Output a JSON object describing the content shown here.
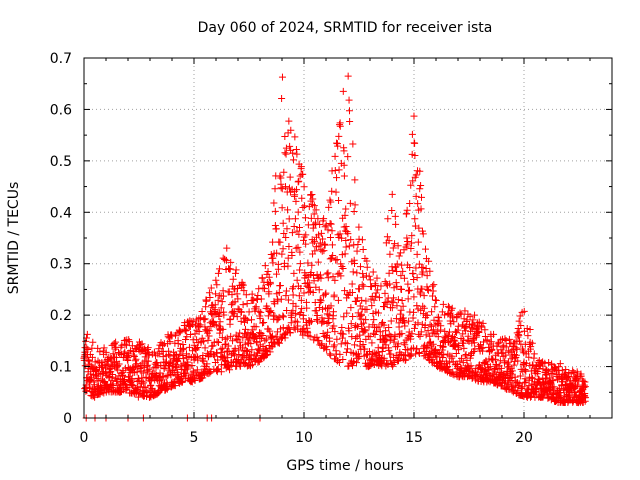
{
  "chart_data": {
    "type": "scatter",
    "title": "Day 060 of 2024, SRMTID for receiver ista",
    "xlabel": "GPS time / hours",
    "ylabel": "SRMTID / TECUs",
    "xlim": [
      0,
      24
    ],
    "ylim": [
      0,
      0.7
    ],
    "xticks": [
      0,
      5,
      10,
      15,
      20
    ],
    "yticks": [
      0,
      0.1,
      0.2,
      0.3,
      0.4,
      0.5,
      0.6,
      0.7
    ],
    "xtick_labels": [
      "0",
      "5",
      "10",
      "15",
      "20"
    ],
    "ytick_labels": [
      "0",
      "0.1",
      "0.2",
      "0.3",
      "0.4",
      "0.5",
      "0.6",
      "0.7"
    ],
    "grid": true,
    "marker": "+",
    "color": "#ff0000",
    "series": [
      {
        "name": "SRMTID",
        "envelope_hours": [
          0,
          0.5,
          1,
          1.5,
          2,
          2.5,
          3,
          3.5,
          4,
          4.5,
          5,
          5.5,
          6,
          6.5,
          7,
          7.5,
          8,
          8.5,
          9,
          9.5,
          10,
          10.5,
          11,
          11.5,
          12,
          12.5,
          13,
          13.5,
          14,
          14.5,
          15,
          15.5,
          16,
          16.5,
          17,
          17.5,
          18,
          18.5,
          19,
          19.5,
          20,
          20.5,
          21,
          21.5,
          22,
          22.5,
          22.8
        ],
        "envelope_low": [
          0.05,
          0.04,
          0.05,
          0.05,
          0.05,
          0.04,
          0.04,
          0.05,
          0.06,
          0.07,
          0.07,
          0.08,
          0.09,
          0.09,
          0.1,
          0.1,
          0.11,
          0.13,
          0.15,
          0.17,
          0.16,
          0.15,
          0.13,
          0.11,
          0.1,
          0.1,
          0.1,
          0.1,
          0.1,
          0.11,
          0.12,
          0.12,
          0.1,
          0.09,
          0.08,
          0.08,
          0.07,
          0.07,
          0.06,
          0.05,
          0.04,
          0.04,
          0.04,
          0.03,
          0.03,
          0.03,
          0.03
        ],
        "envelope_high": [
          0.18,
          0.14,
          0.14,
          0.15,
          0.16,
          0.15,
          0.14,
          0.15,
          0.17,
          0.19,
          0.2,
          0.23,
          0.27,
          0.34,
          0.29,
          0.24,
          0.26,
          0.34,
          0.68,
          0.57,
          0.48,
          0.42,
          0.39,
          0.56,
          0.69,
          0.38,
          0.3,
          0.27,
          0.46,
          0.3,
          0.62,
          0.36,
          0.24,
          0.22,
          0.21,
          0.21,
          0.19,
          0.17,
          0.16,
          0.15,
          0.24,
          0.12,
          0.11,
          0.11,
          0.1,
          0.09,
          0.08
        ],
        "zero_points_hours": [
          0.1,
          0.5,
          1.0,
          2.0,
          2.7,
          4.7,
          5.6,
          5.8,
          8.0
        ]
      }
    ]
  }
}
